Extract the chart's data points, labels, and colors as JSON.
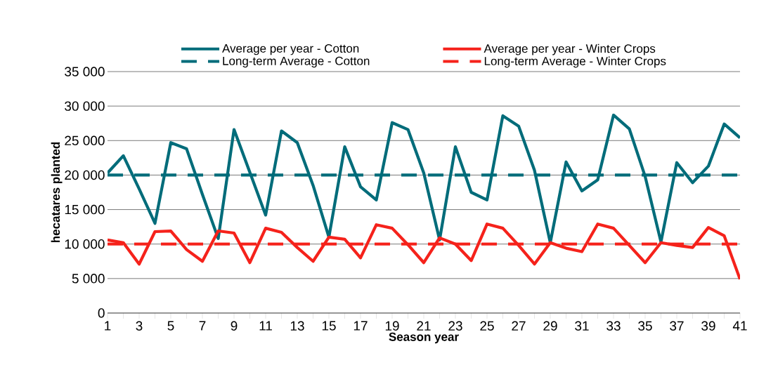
{
  "chart_data": {
    "type": "line",
    "xlabel": "Season year",
    "ylabel": "hecatares planted",
    "legend": "top",
    "grid": "y",
    "x": [
      1,
      2,
      3,
      4,
      5,
      6,
      7,
      8,
      9,
      10,
      11,
      12,
      13,
      14,
      15,
      16,
      17,
      18,
      19,
      20,
      21,
      22,
      23,
      24,
      25,
      26,
      27,
      28,
      29,
      30,
      31,
      32,
      33,
      34,
      35,
      36,
      37,
      38,
      39,
      40,
      41
    ],
    "xlim": [
      1,
      41
    ],
    "ylim": [
      0,
      35000
    ],
    "yticks": [
      {
        "value": 0,
        "label": "0"
      },
      {
        "value": 5000,
        "label": "5 000"
      },
      {
        "value": 10000,
        "label": "10 000"
      },
      {
        "value": 15000,
        "label": "15 000"
      },
      {
        "value": 20000,
        "label": "20 000"
      },
      {
        "value": 25000,
        "label": "25 000"
      },
      {
        "value": 30000,
        "label": "30 000"
      },
      {
        "value": 35000,
        "label": "35 000"
      }
    ],
    "xticks": [
      1,
      {
        "value": 2,
        "label": null
      },
      3,
      {
        "value": 4,
        "label": null
      },
      5,
      {
        "value": 6,
        "label": null
      },
      7,
      {
        "value": 8,
        "label": null
      },
      9,
      {
        "value": 10,
        "label": null
      },
      11,
      {
        "value": 12,
        "label": null
      },
      13,
      {
        "value": 14,
        "label": null
      },
      15,
      {
        "value": 16,
        "label": null
      },
      17,
      {
        "value": 18,
        "label": null
      },
      19,
      {
        "value": 20,
        "label": null
      },
      21,
      {
        "value": 22,
        "label": null
      },
      23,
      {
        "value": 24,
        "label": null
      },
      25,
      {
        "value": 26,
        "label": null
      },
      27,
      {
        "value": 28,
        "label": null
      },
      29,
      {
        "value": 30,
        "label": null
      },
      31,
      {
        "value": 32,
        "label": null
      },
      33,
      {
        "value": 34,
        "label": null
      },
      35,
      {
        "value": 36,
        "label": null
      },
      37,
      {
        "value": 38,
        "label": null
      },
      39,
      {
        "value": 40,
        "label": null
      },
      41
    ],
    "series": [
      {
        "name": "Average per year - Cotton",
        "color": "#006c7a",
        "line_style": "solid",
        "values": [
          20300,
          22800,
          18000,
          13000,
          24700,
          23800,
          17200,
          10800,
          26600,
          20400,
          14200,
          26400,
          24700,
          18500,
          11000,
          24100,
          18300,
          16400,
          27600,
          26600,
          20300,
          10600,
          24100,
          17500,
          16400,
          28600,
          27100,
          20700,
          10200,
          21900,
          17700,
          19300,
          28700,
          26700,
          19800,
          10300,
          21800,
          18900,
          21300,
          27400,
          25400
        ]
      },
      {
        "name": "Average per year - Winter Crops",
        "color": "#f5221b",
        "line_style": "solid",
        "values": [
          10600,
          10200,
          7100,
          11800,
          11900,
          9200,
          7500,
          11900,
          11600,
          7300,
          12300,
          11700,
          9500,
          7500,
          11000,
          10700,
          8000,
          12800,
          12300,
          9900,
          7300,
          10900,
          10000,
          7600,
          12900,
          12300,
          9800,
          7100,
          10200,
          9400,
          8900,
          12900,
          12300,
          9800,
          7300,
          10200,
          9800,
          9500,
          12400,
          11200,
          4900
        ]
      },
      {
        "name": "Long-term Average - Cotton",
        "color": "#006c7a",
        "line_style": "dashed",
        "values": [
          20000,
          20000,
          20000,
          20000,
          20000,
          20000,
          20000,
          20000,
          20000,
          20000,
          20000,
          20000,
          20000,
          20000,
          20000,
          20000,
          20000,
          20000,
          20000,
          20000,
          20000,
          20000,
          20000,
          20000,
          20000,
          20000,
          20000,
          20000,
          20000,
          20000,
          20000,
          20000,
          20000,
          20000,
          20000,
          20000,
          20000,
          20000,
          20000,
          20000,
          20000
        ]
      },
      {
        "name": "Long-term Average - Winter Crops",
        "color": "#f5221b",
        "line_style": "dashed",
        "values": [
          10000,
          10000,
          10000,
          10000,
          10000,
          10000,
          10000,
          10000,
          10000,
          10000,
          10000,
          10000,
          10000,
          10000,
          10000,
          10000,
          10000,
          10000,
          10000,
          10000,
          10000,
          10000,
          10000,
          10000,
          10000,
          10000,
          10000,
          10000,
          10000,
          10000,
          10000,
          10000,
          10000,
          10000,
          10000,
          10000,
          10000,
          10000,
          10000,
          10000,
          10000
        ]
      }
    ]
  }
}
